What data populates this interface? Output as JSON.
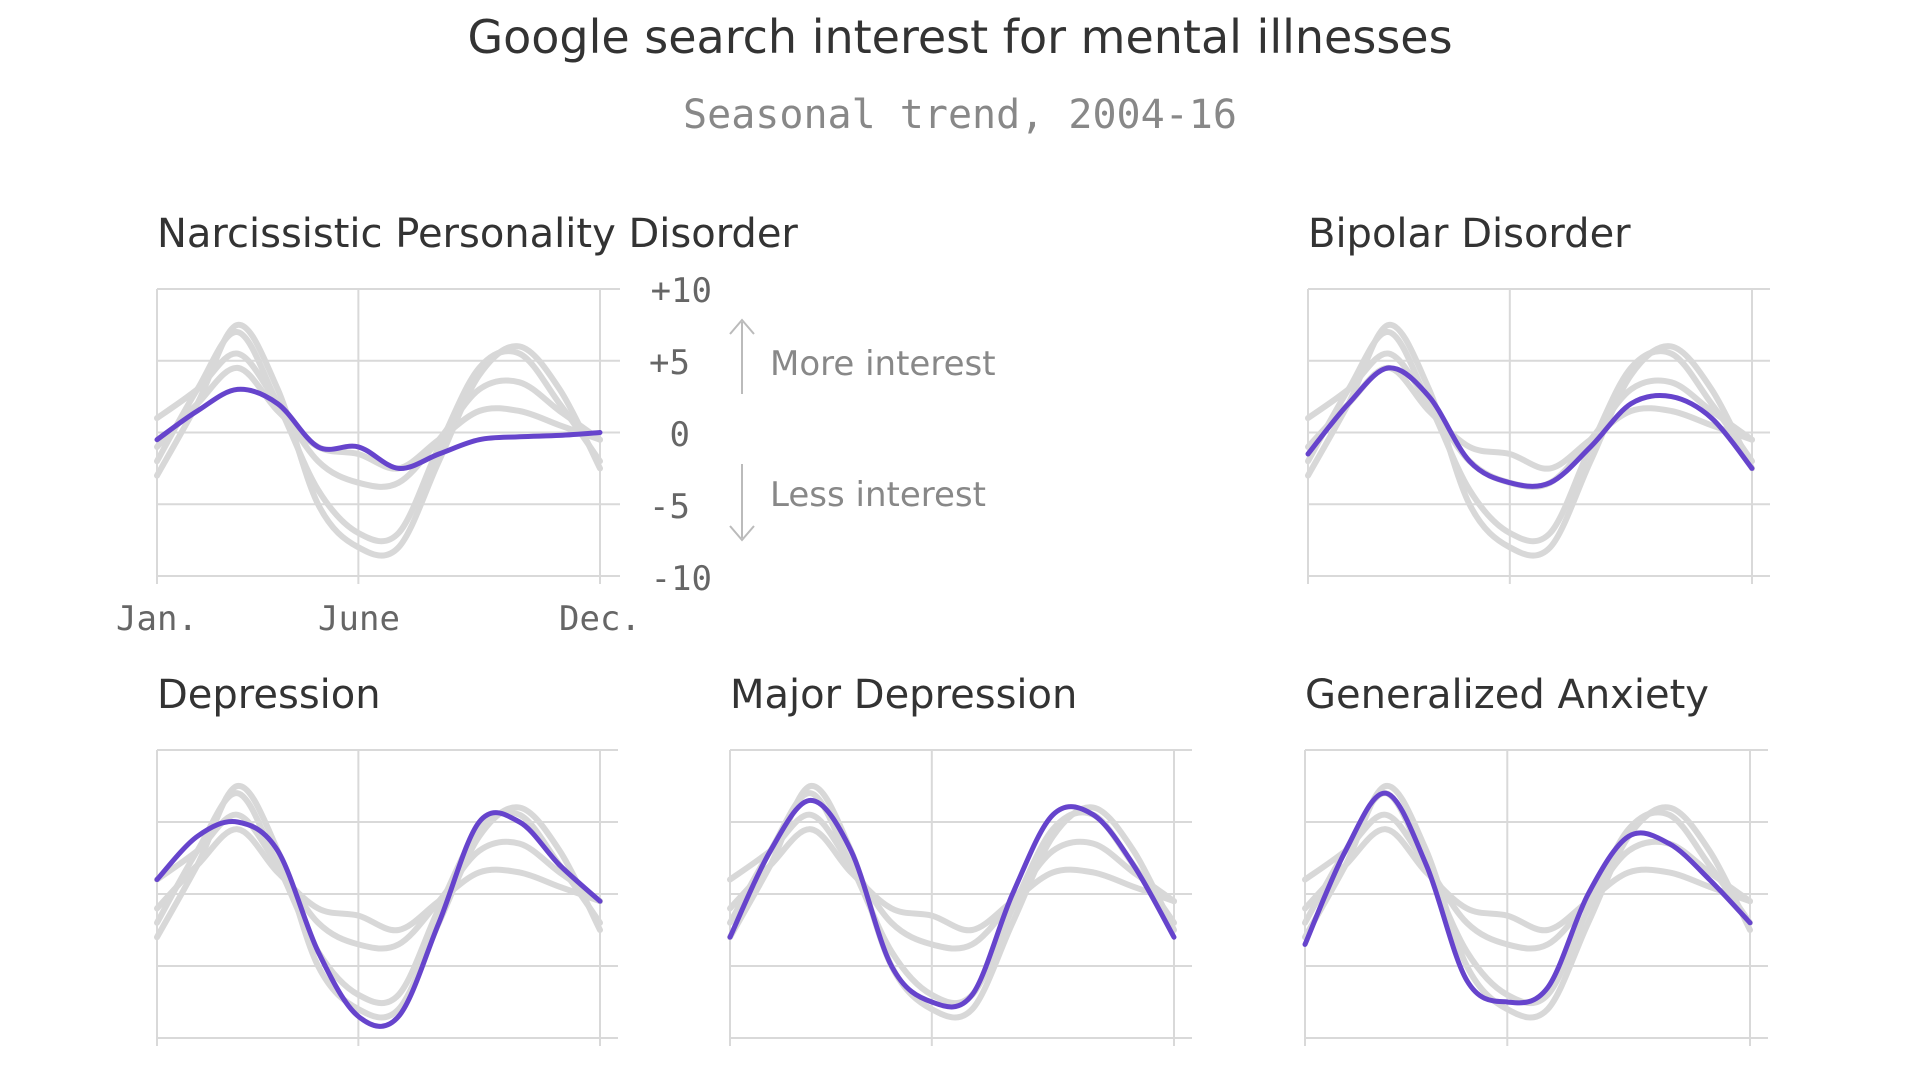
{
  "title": "Google search interest for mental illnesses",
  "subtitle": "Seasonal trend, 2004-16",
  "colors": {
    "highlight": "#6644cc",
    "background_series": "#d8d8d8",
    "grid": "#d9d9d9"
  },
  "axis": {
    "y_ticks": [
      "+10",
      "+5",
      "0",
      "-5",
      "-10"
    ],
    "x_ticks": [
      "Jan.",
      "June",
      "Dec."
    ],
    "more_label": "More interest",
    "less_label": "Less interest"
  },
  "chart_data": [
    {
      "type": "line",
      "title": "Narcissistic Personality Disorder",
      "x": [
        1,
        2,
        3,
        4,
        5,
        6,
        7,
        8,
        9,
        10,
        11,
        12
      ],
      "ylim": [
        -10,
        10
      ],
      "highlight": [
        -0.5,
        1.5,
        3.0,
        2.0,
        -1.0,
        -1.0,
        -2.5,
        -1.5,
        -0.5,
        -0.3,
        -0.2,
        0.0
      ],
      "others": [
        [
          -3,
          2,
          7.5,
          3,
          -5,
          -8,
          -8,
          -2,
          4,
          6,
          3,
          -2.5
        ],
        [
          -2,
          3,
          7,
          2,
          -4,
          -7,
          -7,
          -1,
          4.5,
          5.5,
          2,
          -2
        ],
        [
          1,
          3,
          5.5,
          2,
          -2,
          -3.5,
          -3.5,
          -0.5,
          3,
          3.5,
          1.5,
          -0.5
        ],
        [
          -1,
          2,
          4.5,
          1.5,
          -1,
          -1.5,
          -2.5,
          -0.5,
          1.5,
          1.5,
          0.5,
          -0.5
        ]
      ]
    },
    {
      "type": "line",
      "title": "Bipolar Disorder",
      "x": [
        1,
        2,
        3,
        4,
        5,
        6,
        7,
        8,
        9,
        10,
        11,
        12
      ],
      "ylim": [
        -10,
        10
      ],
      "highlight": [
        -1.5,
        2,
        4.5,
        2.5,
        -2,
        -3.5,
        -3.5,
        -1,
        2,
        2.5,
        1,
        -2.5
      ],
      "others": [
        [
          -3,
          2,
          7.5,
          3,
          -5,
          -8,
          -8,
          -2,
          4,
          6,
          3,
          -2.5
        ],
        [
          -2,
          3,
          7,
          2,
          -4,
          -7,
          -7,
          -1,
          4.5,
          5.5,
          2,
          -2
        ],
        [
          1,
          3,
          5.5,
          2,
          -2,
          -3.5,
          -3.5,
          -0.5,
          3,
          3.5,
          1.5,
          -0.5
        ],
        [
          -1,
          2,
          4.5,
          1.5,
          -1,
          -1.5,
          -2.5,
          -0.5,
          1.5,
          1.5,
          0.5,
          -0.5
        ]
      ]
    },
    {
      "type": "line",
      "title": "Depression",
      "x": [
        1,
        2,
        3,
        4,
        5,
        6,
        7,
        8,
        9,
        10,
        11,
        12
      ],
      "ylim": [
        -10,
        10
      ],
      "highlight": [
        1,
        4,
        5,
        3,
        -4,
        -8.5,
        -8.5,
        -2,
        5,
        5,
        2,
        -0.5
      ],
      "others": [
        [
          -3,
          2,
          7.5,
          3,
          -5,
          -8,
          -8,
          -2,
          4,
          6,
          3,
          -2.5
        ],
        [
          -2,
          3,
          7,
          2,
          -4,
          -7,
          -7,
          -1,
          4.5,
          5.5,
          2,
          -2
        ],
        [
          1,
          3,
          5.5,
          2,
          -2,
          -3.5,
          -3.5,
          -0.5,
          3,
          3.5,
          1.5,
          -0.5
        ],
        [
          -1,
          2,
          4.5,
          1.5,
          -1,
          -1.5,
          -2.5,
          -0.5,
          1.5,
          1.5,
          0.5,
          -0.5
        ]
      ]
    },
    {
      "type": "line",
      "title": "Major Depression",
      "x": [
        1,
        2,
        3,
        4,
        5,
        6,
        7,
        8,
        9,
        10,
        11,
        12
      ],
      "ylim": [
        -10,
        10
      ],
      "highlight": [
        -3,
        3,
        6.5,
        3,
        -5,
        -7.5,
        -7,
        0,
        5.5,
        5.5,
        2,
        -3
      ],
      "others": [
        [
          -3,
          2,
          7.5,
          3,
          -5,
          -8,
          -8,
          -2,
          4,
          6,
          3,
          -2.5
        ],
        [
          -2,
          3,
          7,
          2,
          -4,
          -7,
          -7,
          -1,
          4.5,
          5.5,
          2,
          -2
        ],
        [
          1,
          3,
          5.5,
          2,
          -2,
          -3.5,
          -3.5,
          -0.5,
          3,
          3.5,
          1.5,
          -0.5
        ],
        [
          -1,
          2,
          4.5,
          1.5,
          -1,
          -1.5,
          -2.5,
          -0.5,
          1.5,
          1.5,
          0.5,
          -0.5
        ]
      ]
    },
    {
      "type": "line",
      "title": "Generalized Anxiety",
      "x": [
        1,
        2,
        3,
        4,
        5,
        6,
        7,
        8,
        9,
        10,
        11,
        12
      ],
      "ylim": [
        -10,
        10
      ],
      "highlight": [
        -3.5,
        3,
        7,
        2,
        -6,
        -7.5,
        -6.5,
        0,
        4,
        3.5,
        1,
        -2
      ],
      "others": [
        [
          -3,
          2,
          7.5,
          3,
          -5,
          -8,
          -8,
          -2,
          4,
          6,
          3,
          -2.5
        ],
        [
          -2,
          3,
          7,
          2,
          -4,
          -7,
          -7,
          -1,
          4.5,
          5.5,
          2,
          -2
        ],
        [
          1,
          3,
          5.5,
          2,
          -2,
          -3.5,
          -3.5,
          -0.5,
          3,
          3.5,
          1.5,
          -0.5
        ],
        [
          -1,
          2,
          4.5,
          1.5,
          -1,
          -1.5,
          -2.5,
          -0.5,
          1.5,
          1.5,
          0.5,
          -0.5
        ]
      ]
    }
  ]
}
